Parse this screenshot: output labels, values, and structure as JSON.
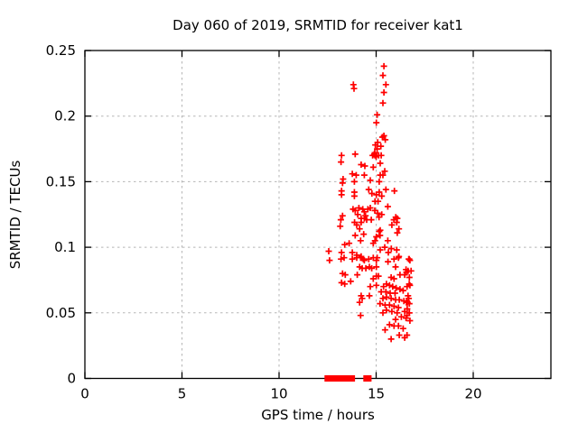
{
  "page": {
    "background": "#ffffff"
  },
  "chart_data": {
    "type": "scatter",
    "title": "Day 060 of 2019, SRMTID for receiver kat1",
    "xlabel": "GPS time / hours",
    "ylabel": "SRMTID / TECUs",
    "xlim": [
      0,
      24
    ],
    "ylim": [
      0,
      0.25
    ],
    "xticks": {
      "values": [
        0,
        5,
        10,
        15,
        20
      ],
      "labels": [
        "0",
        "5",
        "10",
        "15",
        "20"
      ]
    },
    "yticks": {
      "values": [
        0,
        0.05,
        0.1,
        0.15,
        0.2,
        0.25
      ],
      "labels": [
        "0",
        "0.05",
        "0.1",
        "0.15",
        "0.2",
        "0.25"
      ]
    },
    "grid": true,
    "legend_position": "none",
    "colors": {
      "marker": "#ff0000",
      "grid": "#b5b5b5",
      "axis": "#000000",
      "background": "#ffffff"
    },
    "series": [
      {
        "name": "srmtid-points",
        "marker": "plus",
        "color": "#ff0000",
        "points": [
          [
            15.4,
            0.238
          ],
          [
            15.35,
            0.231
          ],
          [
            15.5,
            0.224
          ],
          [
            15.4,
            0.218
          ],
          [
            15.35,
            0.21
          ],
          [
            13.83,
            0.224
          ],
          [
            13.86,
            0.221
          ],
          [
            15.05,
            0.201
          ],
          [
            15.01,
            0.195
          ],
          [
            15.4,
            0.185
          ],
          [
            15.32,
            0.184
          ],
          [
            15.47,
            0.182
          ],
          [
            15.08,
            0.18
          ],
          [
            14.96,
            0.178
          ],
          [
            15.24,
            0.177
          ],
          [
            15.05,
            0.175
          ],
          [
            14.93,
            0.172
          ],
          [
            14.9,
            0.171
          ],
          [
            15.0,
            0.169
          ],
          [
            15.13,
            0.17
          ],
          [
            15.26,
            0.17
          ],
          [
            14.94,
            0.17
          ],
          [
            14.82,
            0.17
          ],
          [
            13.22,
            0.17
          ],
          [
            13.92,
            0.171
          ],
          [
            13.19,
            0.165
          ],
          [
            15.21,
            0.164
          ],
          [
            14.23,
            0.163
          ],
          [
            14.42,
            0.162
          ],
          [
            14.85,
            0.161
          ],
          [
            15.44,
            0.158
          ],
          [
            13.77,
            0.156
          ],
          [
            13.97,
            0.155
          ],
          [
            14.39,
            0.155
          ],
          [
            15.35,
            0.155
          ],
          [
            15.21,
            0.155
          ],
          [
            13.3,
            0.152
          ],
          [
            14.7,
            0.151
          ],
          [
            13.88,
            0.15
          ],
          [
            15.16,
            0.15
          ],
          [
            13.27,
            0.149
          ],
          [
            13.22,
            0.143
          ],
          [
            13.88,
            0.142
          ],
          [
            14.62,
            0.144
          ],
          [
            14.78,
            0.141
          ],
          [
            15.16,
            0.142
          ],
          [
            15.5,
            0.144
          ],
          [
            15.94,
            0.143
          ],
          [
            13.22,
            0.14
          ],
          [
            13.88,
            0.139
          ],
          [
            15.01,
            0.14
          ],
          [
            15.29,
            0.139
          ],
          [
            14.94,
            0.135
          ],
          [
            15.1,
            0.135
          ],
          [
            14.11,
            0.13
          ],
          [
            14.7,
            0.13
          ],
          [
            13.81,
            0.129
          ],
          [
            14.31,
            0.129
          ],
          [
            14.57,
            0.129
          ],
          [
            13.92,
            0.128
          ],
          [
            14.93,
            0.128
          ],
          [
            15.6,
            0.131
          ],
          [
            15.08,
            0.126
          ],
          [
            14.39,
            0.127
          ],
          [
            13.27,
            0.124
          ],
          [
            15.29,
            0.125
          ],
          [
            14.23,
            0.122
          ],
          [
            14.39,
            0.122
          ],
          [
            14.51,
            0.121
          ],
          [
            16.01,
            0.123
          ],
          [
            16.09,
            0.122
          ],
          [
            15.91,
            0.121
          ],
          [
            15.15,
            0.123
          ],
          [
            16.06,
            0.119
          ],
          [
            13.89,
            0.119
          ],
          [
            14.23,
            0.119
          ],
          [
            15.81,
            0.117
          ],
          [
            14.0,
            0.117
          ],
          [
            13.15,
            0.116
          ],
          [
            14.15,
            0.114
          ],
          [
            16.17,
            0.114
          ],
          [
            15.21,
            0.113
          ],
          [
            15.16,
            0.112
          ],
          [
            16.09,
            0.111
          ],
          [
            14.36,
            0.11
          ],
          [
            14.45,
            0.124
          ],
          [
            14.75,
            0.121
          ],
          [
            14.05,
            0.125
          ],
          [
            13.18,
            0.121
          ],
          [
            13.92,
            0.109
          ],
          [
            15.2,
            0.109
          ],
          [
            15.01,
            0.108
          ],
          [
            14.2,
            0.105
          ],
          [
            15.6,
            0.105
          ],
          [
            14.94,
            0.105
          ],
          [
            13.61,
            0.103
          ],
          [
            14.85,
            0.103
          ],
          [
            13.38,
            0.102
          ],
          [
            15.44,
            0.1
          ],
          [
            15.78,
            0.099
          ],
          [
            16.06,
            0.098
          ],
          [
            15.21,
            0.098
          ],
          [
            12.56,
            0.097
          ],
          [
            13.22,
            0.096
          ],
          [
            13.77,
            0.096
          ],
          [
            15.63,
            0.096
          ],
          [
            14.0,
            0.094
          ],
          [
            14.23,
            0.093
          ],
          [
            16.17,
            0.093
          ],
          [
            13.35,
            0.092
          ],
          [
            14.0,
            0.092
          ],
          [
            14.2,
            0.092
          ],
          [
            14.85,
            0.092
          ],
          [
            16.15,
            0.092
          ],
          [
            15.05,
            0.092
          ],
          [
            14.62,
            0.091
          ],
          [
            13.77,
            0.091
          ],
          [
            16.68,
            0.091
          ],
          [
            13.19,
            0.091
          ],
          [
            14.34,
            0.091
          ],
          [
            15.92,
            0.091
          ],
          [
            16.7,
            0.091
          ],
          [
            12.6,
            0.09
          ],
          [
            14.39,
            0.09
          ],
          [
            16.74,
            0.09
          ],
          [
            15.01,
            0.09
          ],
          [
            15.61,
            0.089
          ],
          [
            14.15,
            0.085
          ],
          [
            14.65,
            0.085
          ],
          [
            15.01,
            0.085
          ],
          [
            16.0,
            0.085
          ],
          [
            14.28,
            0.084
          ],
          [
            14.47,
            0.084
          ],
          [
            14.77,
            0.084
          ],
          [
            16.54,
            0.083
          ],
          [
            16.8,
            0.082
          ],
          [
            16.64,
            0.082
          ],
          [
            16.56,
            0.081
          ],
          [
            13.27,
            0.08
          ],
          [
            13.41,
            0.079
          ],
          [
            14.03,
            0.079
          ],
          [
            16.23,
            0.079
          ],
          [
            16.47,
            0.079
          ],
          [
            15.01,
            0.078
          ],
          [
            15.12,
            0.078
          ],
          [
            16.71,
            0.077
          ],
          [
            15.77,
            0.077
          ],
          [
            14.85,
            0.076
          ],
          [
            15.92,
            0.076
          ],
          [
            13.69,
            0.074
          ],
          [
            13.22,
            0.073
          ],
          [
            13.38,
            0.072
          ],
          [
            15.53,
            0.072
          ],
          [
            16.7,
            0.072
          ],
          [
            16.74,
            0.071
          ],
          [
            15.69,
            0.071
          ],
          [
            15.01,
            0.071
          ],
          [
            14.7,
            0.07
          ],
          [
            15.38,
            0.07
          ],
          [
            15.85,
            0.07
          ],
          [
            16.59,
            0.07
          ],
          [
            16.03,
            0.069
          ],
          [
            16.23,
            0.068
          ],
          [
            16.39,
            0.067
          ],
          [
            15.26,
            0.066
          ],
          [
            15.5,
            0.066
          ],
          [
            15.72,
            0.065
          ],
          [
            15.97,
            0.065
          ],
          [
            14.23,
            0.063
          ],
          [
            16.64,
            0.063
          ],
          [
            14.65,
            0.063
          ],
          [
            15.53,
            0.062
          ],
          [
            14.28,
            0.061
          ],
          [
            15.77,
            0.061
          ],
          [
            16.68,
            0.061
          ],
          [
            15.35,
            0.061
          ],
          [
            16.0,
            0.06
          ],
          [
            16.19,
            0.06
          ],
          [
            16.43,
            0.059
          ],
          [
            14.15,
            0.058
          ],
          [
            16.62,
            0.058
          ],
          [
            16.56,
            0.058
          ],
          [
            16.71,
            0.057
          ],
          [
            15.2,
            0.057
          ],
          [
            15.46,
            0.056
          ],
          [
            15.69,
            0.056
          ],
          [
            15.92,
            0.055
          ],
          [
            16.15,
            0.054
          ],
          [
            16.6,
            0.053
          ],
          [
            15.53,
            0.052
          ],
          [
            15.81,
            0.051
          ],
          [
            16.47,
            0.051
          ],
          [
            16.08,
            0.05
          ],
          [
            16.7,
            0.05
          ],
          [
            15.35,
            0.05
          ],
          [
            16.71,
            0.05
          ],
          [
            14.2,
            0.048
          ],
          [
            16.59,
            0.048
          ],
          [
            16.3,
            0.047
          ],
          [
            16.54,
            0.046
          ],
          [
            16.0,
            0.045
          ],
          [
            16.74,
            0.044
          ],
          [
            15.69,
            0.041
          ],
          [
            15.92,
            0.04
          ],
          [
            16.15,
            0.04
          ],
          [
            16.39,
            0.038
          ],
          [
            15.46,
            0.037
          ],
          [
            16.59,
            0.033
          ],
          [
            16.19,
            0.033
          ],
          [
            16.47,
            0.031
          ],
          [
            15.77,
            0.03
          ]
        ]
      },
      {
        "name": "zero-line-flags",
        "marker": "filled-square",
        "color": "#ff0000",
        "points": [
          [
            12.5,
            0
          ],
          [
            12.6,
            0
          ],
          [
            12.7,
            0
          ],
          [
            12.8,
            0
          ],
          [
            12.9,
            0
          ],
          [
            13.0,
            0
          ],
          [
            13.1,
            0
          ],
          [
            13.15,
            0
          ],
          [
            13.4,
            0
          ],
          [
            13.5,
            0
          ],
          [
            13.6,
            0
          ],
          [
            13.7,
            0
          ],
          [
            13.75,
            0
          ],
          [
            14.5,
            0
          ],
          [
            14.6,
            0
          ]
        ]
      }
    ]
  }
}
